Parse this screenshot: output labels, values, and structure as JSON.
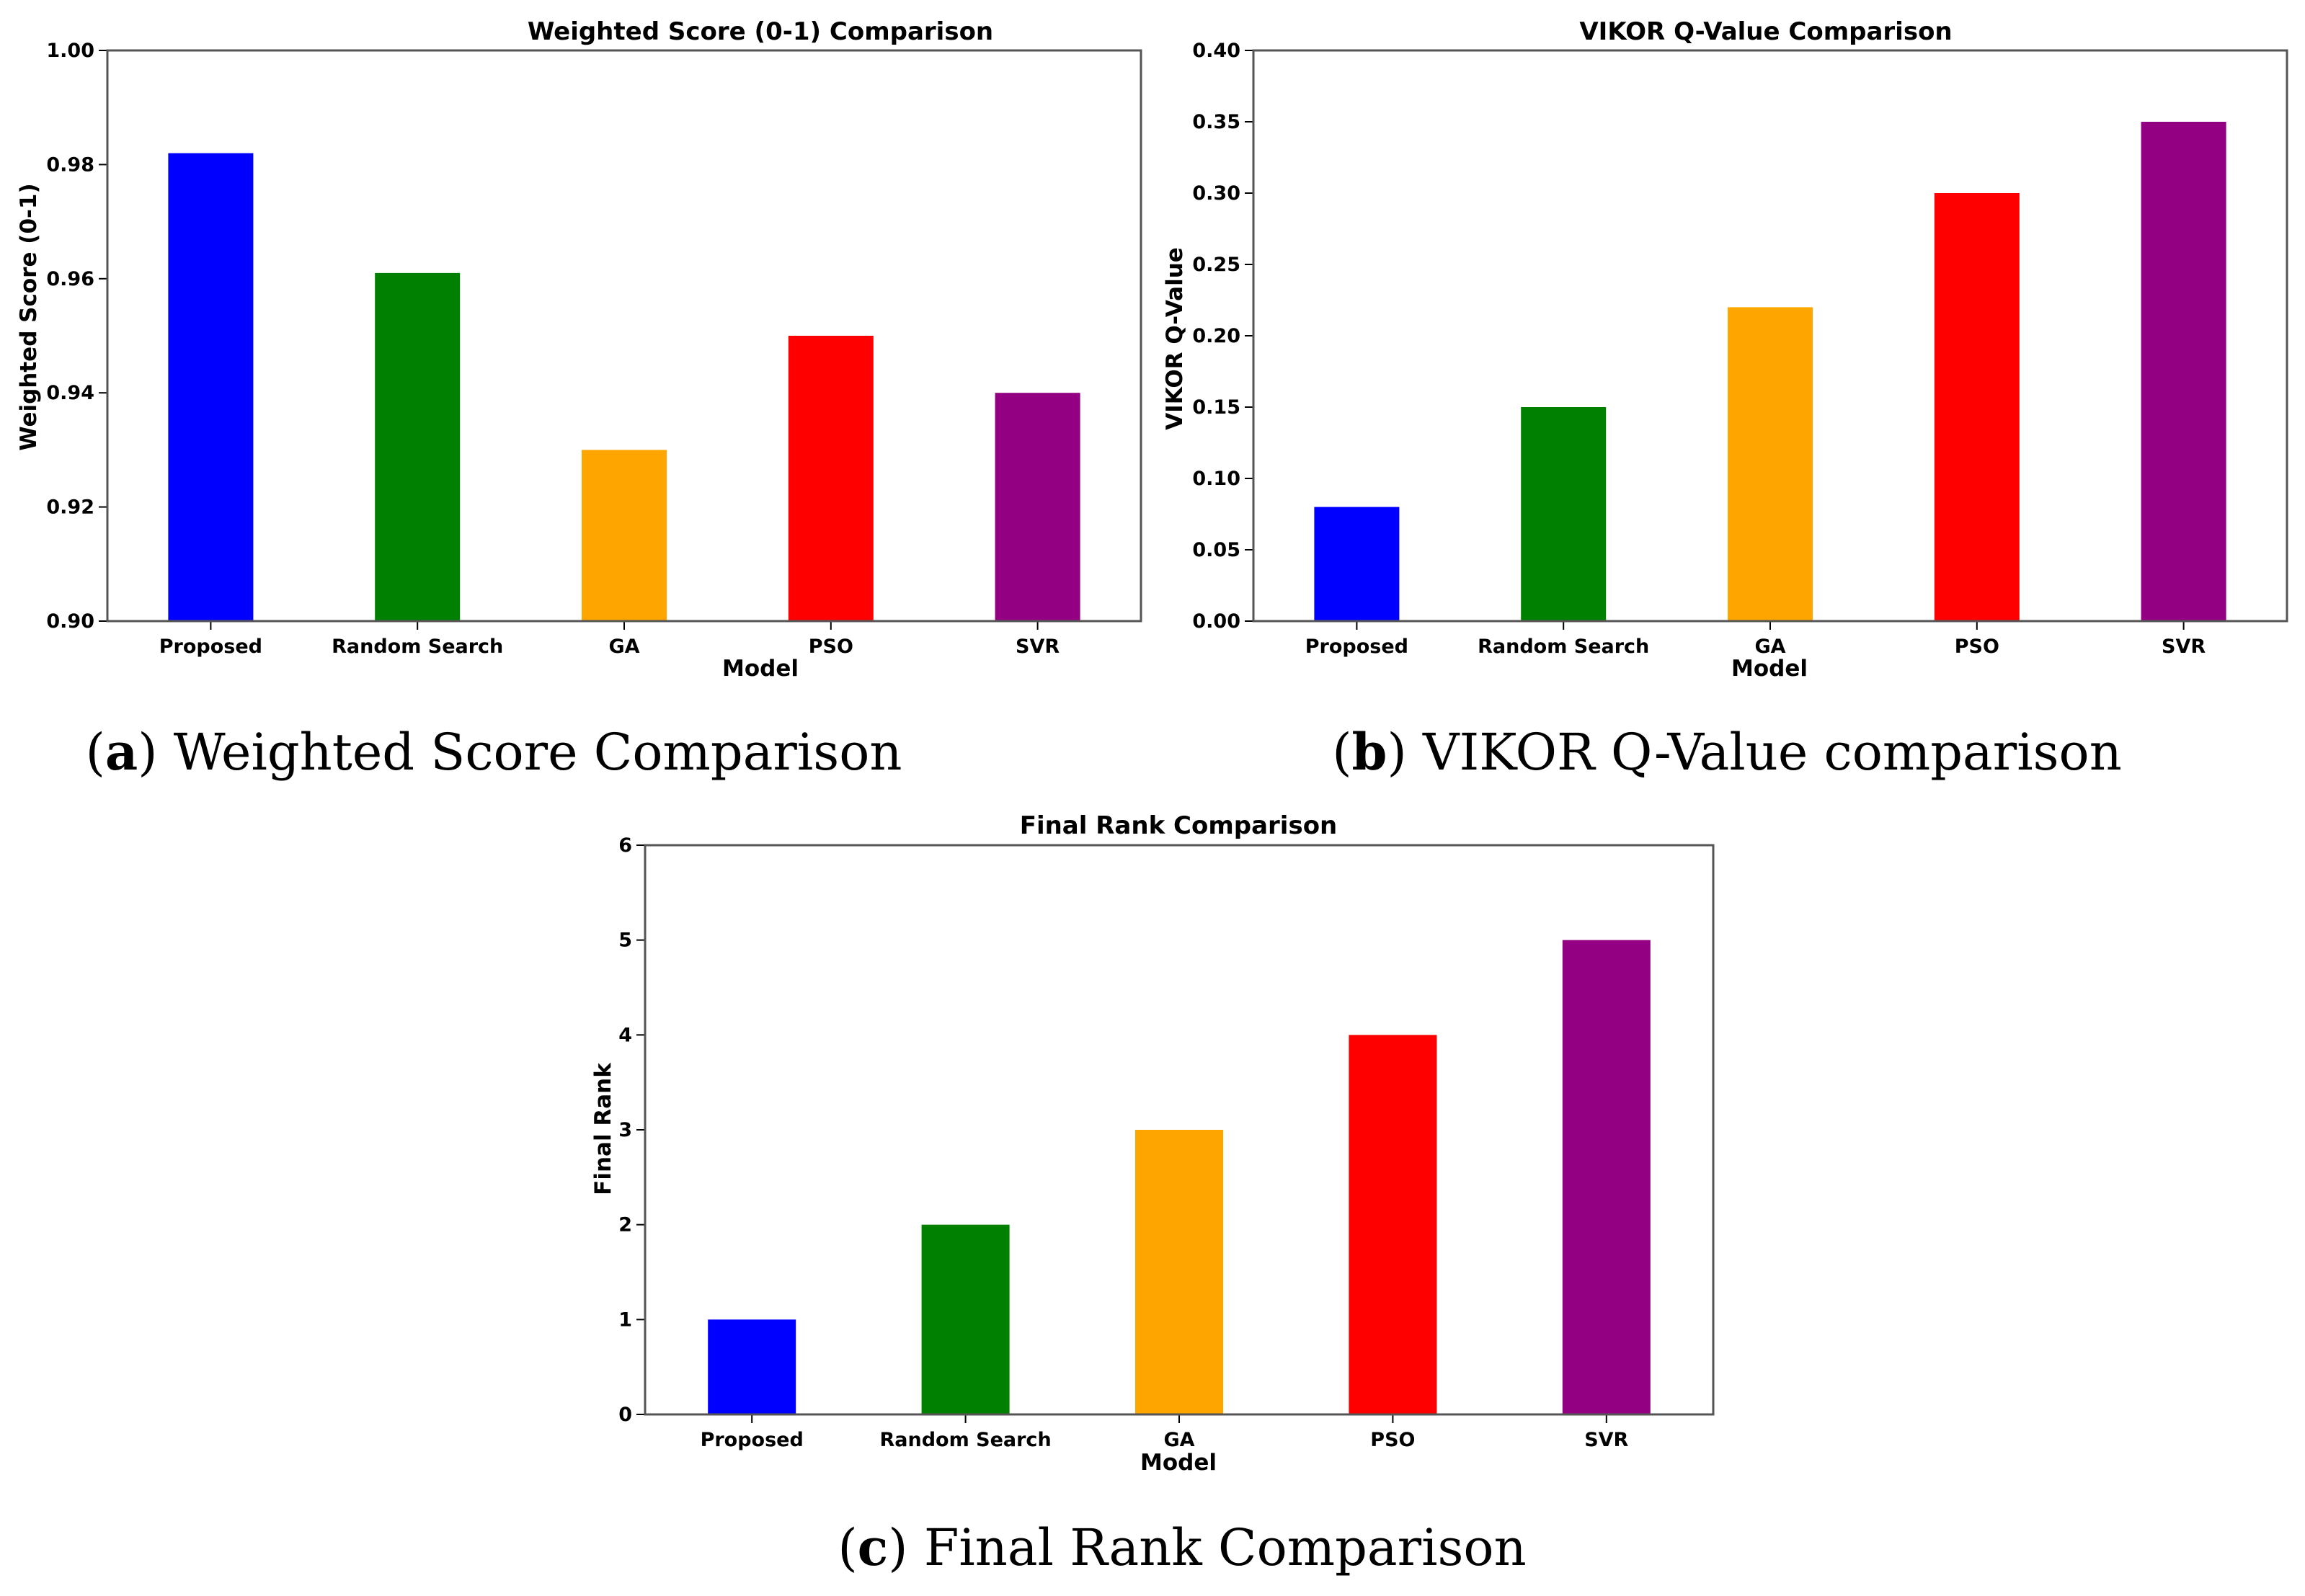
{
  "colors": {
    "Proposed": "#0000ff",
    "Random Search": "#008000",
    "GA": "#ffa500",
    "PSO": "#ff0000",
    "SVR": "#930081"
  },
  "chart_data": [
    {
      "type": "bar",
      "title": "Weighted Score (0-1) Comparison",
      "xlabel": "Model",
      "ylabel": "Weighted Score (0-1)",
      "categories": [
        "Proposed",
        "Random Search",
        "GA",
        "PSO",
        "SVR"
      ],
      "values": [
        0.982,
        0.961,
        0.93,
        0.95,
        0.94
      ],
      "ylim": [
        0.9,
        1.0
      ],
      "yticks": [
        "0.90",
        "0.92",
        "0.94",
        "0.96",
        "0.98",
        "1.00"
      ],
      "grid": false,
      "caption_letter": "a",
      "caption_text": "Weighted Score Comparison"
    },
    {
      "type": "bar",
      "title": "VIKOR Q-Value Comparison",
      "xlabel": "Model",
      "ylabel": "VIKOR Q-Value",
      "categories": [
        "Proposed",
        "Random Search",
        "GA",
        "PSO",
        "SVR"
      ],
      "values": [
        0.08,
        0.15,
        0.22,
        0.3,
        0.35
      ],
      "ylim": [
        0.0,
        0.4
      ],
      "yticks": [
        "0.00",
        "0.05",
        "0.10",
        "0.15",
        "0.20",
        "0.25",
        "0.30",
        "0.35",
        "0.40"
      ],
      "grid": false,
      "caption_letter": "b",
      "caption_text": "VIKOR Q-Value comparison"
    },
    {
      "type": "bar",
      "title": "Final Rank Comparison",
      "xlabel": "Model",
      "ylabel": "Final Rank",
      "categories": [
        "Proposed",
        "Random Search",
        "GA",
        "PSO",
        "SVR"
      ],
      "values": [
        1,
        2,
        3,
        4,
        5
      ],
      "ylim": [
        0,
        6
      ],
      "yticks": [
        "0",
        "1",
        "2",
        "3",
        "4",
        "5",
        "6"
      ],
      "grid": false,
      "caption_letter": "c",
      "caption_text": "Final Rank Comparison"
    }
  ]
}
